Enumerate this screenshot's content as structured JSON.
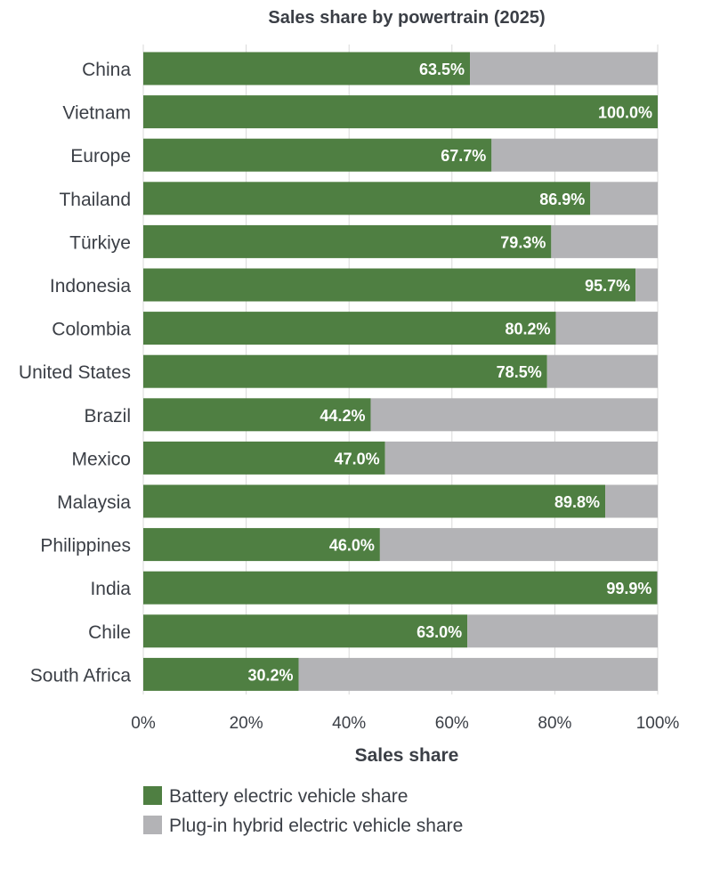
{
  "chart_data": {
    "type": "bar",
    "orientation": "horizontal",
    "stacked": true,
    "title": "Sales share by powertrain (2025)",
    "xlabel": "Sales share",
    "ylabel": "",
    "xlim": [
      0,
      100
    ],
    "x_ticks": [
      "0%",
      "20%",
      "40%",
      "60%",
      "80%",
      "100%"
    ],
    "grid": true,
    "legend_position": "bottom-left",
    "categories": [
      "China",
      "Vietnam",
      "Europe",
      "Thailand",
      "Türkiye",
      "Indonesia",
      "Colombia",
      "United States",
      "Brazil",
      "Mexico",
      "Malaysia",
      "Philippines",
      "India",
      "Chile",
      "South Africa"
    ],
    "series": [
      {
        "name": "Battery electric vehicle share",
        "color": "#4f7f42",
        "values": [
          63.5,
          100.0,
          67.7,
          86.9,
          79.3,
          95.7,
          80.2,
          78.5,
          44.2,
          47.0,
          89.8,
          46.0,
          99.9,
          63.0,
          30.2
        ]
      },
      {
        "name": "Plug-in hybrid electric vehicle share",
        "color": "#b3b3b6",
        "values": [
          36.5,
          0.0,
          32.3,
          13.1,
          20.7,
          4.3,
          19.8,
          21.5,
          55.8,
          53.0,
          10.2,
          54.0,
          0.1,
          37.0,
          69.8
        ]
      }
    ],
    "data_labels": [
      "63.5%",
      "100.0%",
      "67.7%",
      "86.9%",
      "79.3%",
      "95.7%",
      "80.2%",
      "78.5%",
      "44.2%",
      "47.0%",
      "89.8%",
      "46.0%",
      "99.9%",
      "63.0%",
      "30.2%"
    ]
  }
}
